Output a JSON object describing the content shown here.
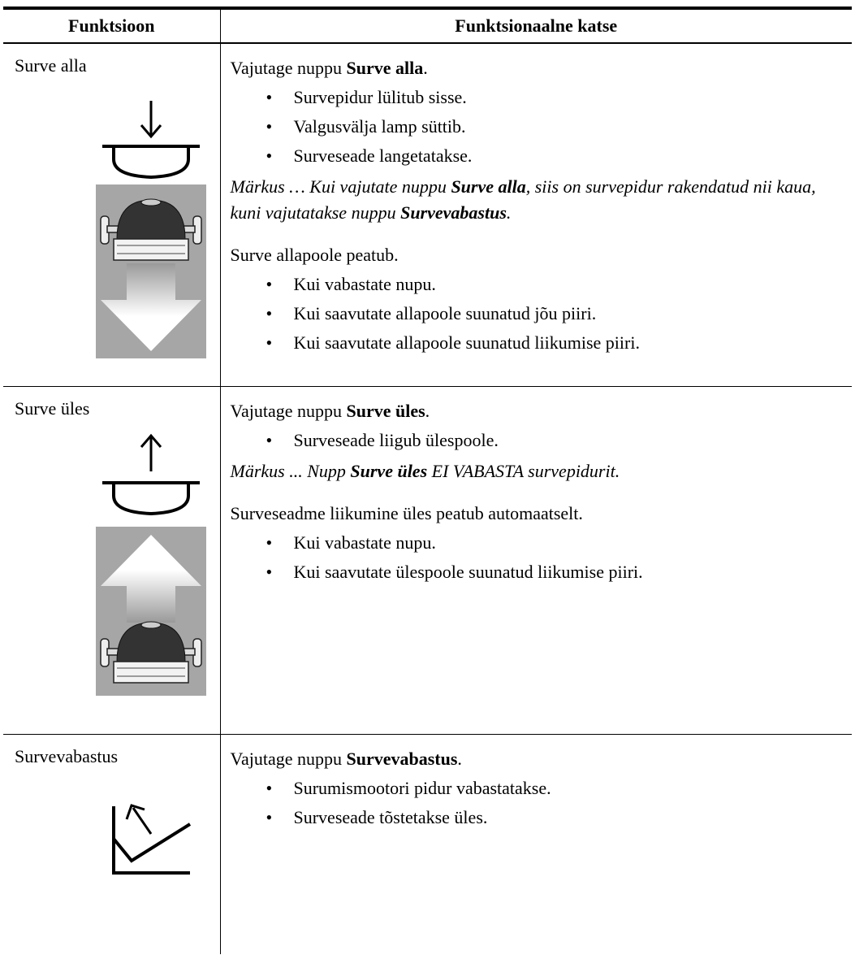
{
  "header": {
    "columns": [
      "Funktsioon",
      "Funktsionaalne katse"
    ]
  },
  "table": {
    "rows": [
      {
        "function": "Surve alla",
        "intro": [
          {
            "text": "Vajutage nuppu "
          },
          {
            "text": "Surve alla",
            "bold": true
          },
          {
            "text": "."
          }
        ],
        "bullets": [
          "Survepidur lülitub sisse.",
          "Valgusvälja lamp süttib.",
          "Surveseade langetatakse."
        ],
        "note": [
          {
            "text": "Märkus … Kui vajutate nuppu "
          },
          {
            "text": "Surve alla",
            "bold": true
          },
          {
            "text": ", siis on survepidur rakendatud nii kaua, kuni vajutatakse nuppu "
          },
          {
            "text": "Survevabastus",
            "bold": true
          },
          {
            "text": "."
          }
        ],
        "followup": "Surve allapoole peatub.",
        "followup_bullets": [
          "Kui vabastate nupu.",
          "Kui saavutate allapoole suunatud jõu piiri.",
          "Kui saavutate allapoole suunatud liikumise piiri."
        ]
      },
      {
        "function": "Surve üles",
        "intro": [
          {
            "text": "Vajutage nuppu "
          },
          {
            "text": "Surve üles",
            "bold": true
          },
          {
            "text": "."
          }
        ],
        "bullets": [
          "Surveseade liigub ülespoole."
        ],
        "note": [
          {
            "text": "Märkus ... Nupp "
          },
          {
            "text": "Surve üles",
            "bold": true
          },
          {
            "text": " EI VABASTA survepidurit."
          }
        ],
        "followup": "Surveseadme liikumine üles peatub automaatselt.",
        "followup_bullets": [
          "Kui vabastate nupu.",
          "Kui saavutate ülespoole suunatud liikumise piiri."
        ]
      },
      {
        "function": "Survevabastus",
        "intro": [
          {
            "text": "Vajutage nuppu "
          },
          {
            "text": "Survevabastus",
            "bold": true
          },
          {
            "text": "."
          }
        ],
        "bullets": [
          "Surumismootori pidur vabastatakse.",
          "Surveseade tõstetakse üles."
        ]
      }
    ]
  }
}
